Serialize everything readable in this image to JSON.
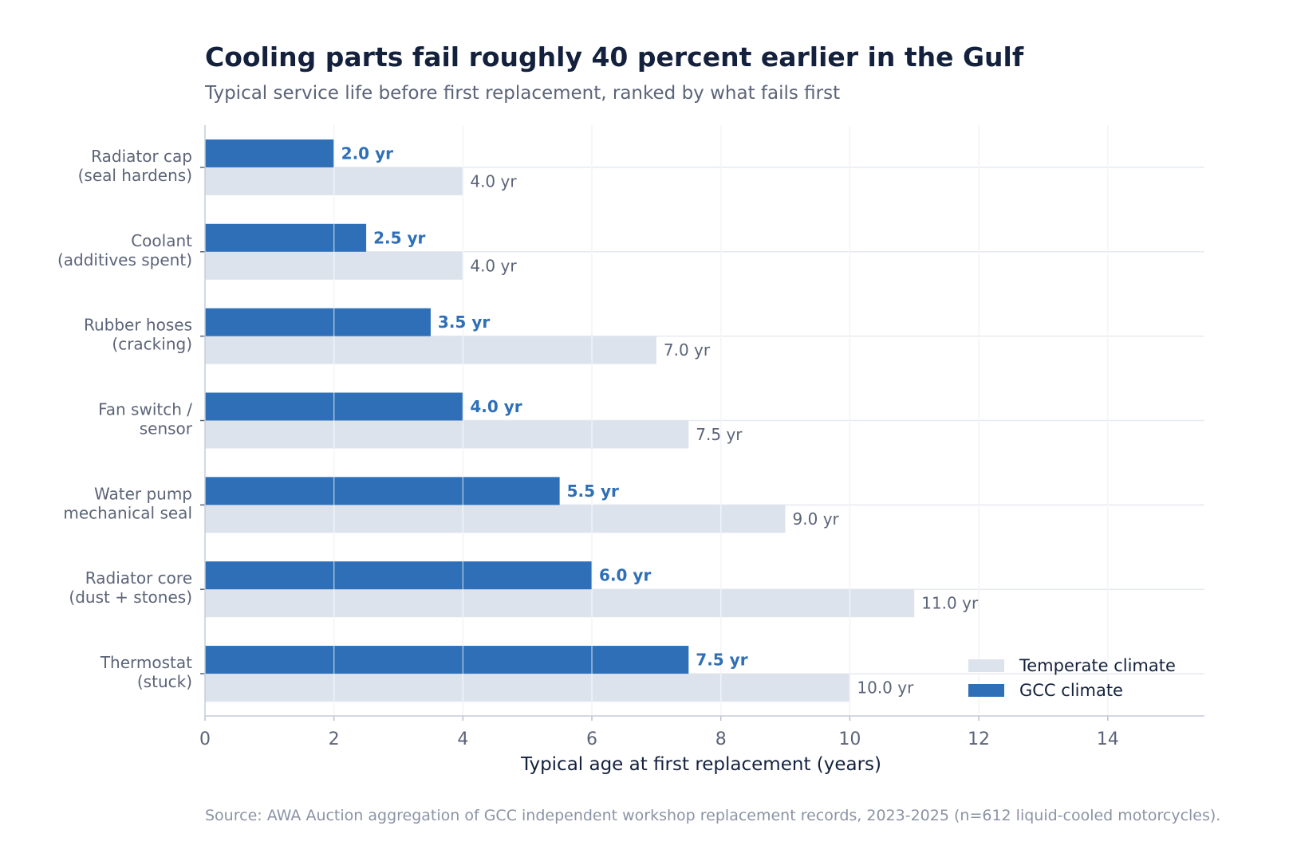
{
  "chart_data": {
    "type": "bar",
    "orientation": "horizontal",
    "title": "Cooling parts fail roughly 40 percent earlier in the Gulf",
    "subtitle": "Typical service life before first replacement, ranked by what fails first",
    "xlabel": "Typical age at first replacement (years)",
    "xlim": [
      0,
      15.5
    ],
    "xticks": [
      0,
      2,
      4,
      6,
      8,
      10,
      12,
      14
    ],
    "grid": true,
    "legend_position": "bottom-right",
    "value_suffix": " yr",
    "categories": [
      [
        "Radiator cap",
        "(seal hardens)"
      ],
      [
        "Coolant",
        "(additives spent)"
      ],
      [
        "Rubber hoses",
        "(cracking)"
      ],
      [
        "Fan switch /",
        "sensor"
      ],
      [
        "Water pump",
        "mechanical seal"
      ],
      [
        "Radiator core",
        "(dust + stones)"
      ],
      [
        "Thermostat",
        "(stuck)"
      ]
    ],
    "series": [
      {
        "name": "GCC climate",
        "color": "#2e6fb7",
        "label_color": "#2e6fb7",
        "values": [
          2.0,
          2.5,
          3.5,
          4.0,
          5.5,
          6.0,
          7.5
        ]
      },
      {
        "name": "Temperate climate",
        "color": "#dde3ed",
        "label_color": "#5b6478",
        "values": [
          4.0,
          4.0,
          7.0,
          7.5,
          9.0,
          11.0,
          10.0
        ]
      }
    ],
    "source": "Source: AWA Auction aggregation of GCC independent workshop replacement records, 2023-2025 (n=612 liquid-cooled motorcycles)."
  }
}
